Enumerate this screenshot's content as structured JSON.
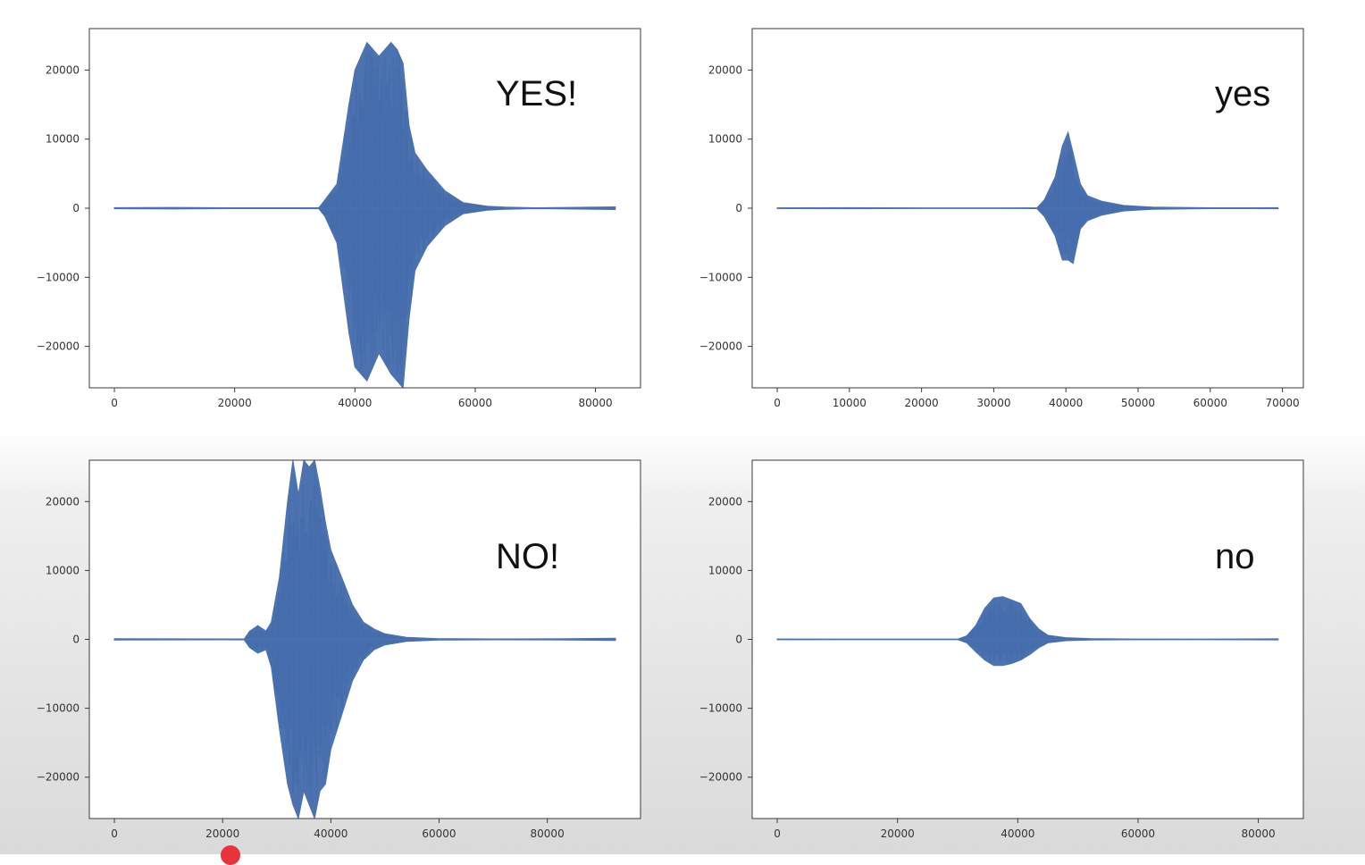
{
  "chart_data": [
    {
      "type": "line",
      "word_label": "YES!",
      "xlim": [
        -4166,
        87487
      ],
      "ylim": [
        -26000,
        26000
      ],
      "xticks": [
        0,
        20000,
        40000,
        60000,
        80000
      ],
      "yticks": [
        20000,
        10000,
        0,
        -10000,
        -20000
      ],
      "color": "#4c72b0",
      "series": [
        {
          "x": [
            0,
            10000,
            20000,
            30000,
            34000,
            35000,
            37000,
            39000,
            40000,
            42000,
            44000,
            46000,
            47000,
            48000,
            49000,
            50000,
            52000,
            55000,
            58000,
            62000,
            65000,
            70000,
            83300
          ],
          "y_max": [
            80,
            120,
            60,
            60,
            80,
            1200,
            3500,
            15000,
            20000,
            24000,
            22000,
            24000,
            23000,
            21000,
            12000,
            8000,
            5500,
            2500,
            800,
            300,
            150,
            60,
            200
          ],
          "y_min": [
            -80,
            -120,
            -60,
            -60,
            -80,
            -1200,
            -5000,
            -18000,
            -23000,
            -25000,
            -21000,
            -24000,
            -25000,
            -26000,
            -16000,
            -9000,
            -5500,
            -2500,
            -800,
            -300,
            -150,
            -60,
            -200
          ]
        }
      ]
    },
    {
      "type": "line",
      "word_label": "yes",
      "xlim": [
        -3470,
        72900
      ],
      "ylim": [
        -26000,
        26000
      ],
      "xticks": [
        0,
        10000,
        20000,
        30000,
        40000,
        50000,
        60000,
        70000
      ],
      "yticks": [
        20000,
        10000,
        0,
        -10000,
        -20000
      ],
      "color": "#4c72b0",
      "series": [
        {
          "x": [
            0,
            10000,
            20000,
            30000,
            36000,
            37000,
            38500,
            39500,
            40300,
            41000,
            42000,
            43000,
            45000,
            48000,
            52000,
            60000,
            69400
          ],
          "y_max": [
            50,
            80,
            40,
            40,
            60,
            1200,
            4500,
            9000,
            11000,
            8000,
            3500,
            1800,
            1000,
            400,
            150,
            60,
            80
          ],
          "y_min": [
            -50,
            -80,
            -40,
            -40,
            -60,
            -1200,
            -4000,
            -7500,
            -7500,
            -8000,
            -3000,
            -1800,
            -1000,
            -400,
            -150,
            -60,
            -80
          ]
        }
      ]
    },
    {
      "type": "line",
      "word_label": "NO!",
      "xlim": [
        -4630,
        97230
      ],
      "ylim": [
        -26000,
        26000
      ],
      "xticks": [
        0,
        20000,
        40000,
        60000,
        80000
      ],
      "yticks": [
        20000,
        10000,
        0,
        -10000,
        -20000
      ],
      "color": "#4c72b0",
      "series": [
        {
          "x": [
            0,
            10000,
            20000,
            24000,
            25000,
            26500,
            28000,
            29000,
            30500,
            32000,
            33000,
            34000,
            35000,
            36000,
            37000,
            38000,
            39000,
            40000,
            42000,
            44000,
            46000,
            48000,
            50000,
            54000,
            60000,
            70000,
            80000,
            92600
          ],
          "y_max": [
            100,
            80,
            60,
            80,
            1200,
            2000,
            1200,
            2500,
            9000,
            20000,
            26000,
            21000,
            26000,
            25000,
            26000,
            22000,
            17000,
            13000,
            9000,
            5000,
            2500,
            1500,
            800,
            300,
            100,
            60,
            80,
            150
          ],
          "y_min": [
            -100,
            -80,
            -60,
            -80,
            -1200,
            -2000,
            -1500,
            -4000,
            -13000,
            -21000,
            -24000,
            -26000,
            -22000,
            -24000,
            -26000,
            -22000,
            -21000,
            -16000,
            -11000,
            -6000,
            -3000,
            -1500,
            -800,
            -300,
            -100,
            -60,
            -80,
            -150
          ]
        }
      ]
    },
    {
      "type": "line",
      "word_label": "no",
      "xlim": [
        -4166,
        87487
      ],
      "ylim": [
        -26000,
        26000
      ],
      "xticks": [
        0,
        20000,
        40000,
        60000,
        80000
      ],
      "yticks": [
        20000,
        10000,
        0,
        -10000,
        -20000
      ],
      "color": "#4c72b0",
      "series": [
        {
          "x": [
            0,
            10000,
            20000,
            30000,
            31500,
            33000,
            34500,
            36000,
            37500,
            39000,
            40500,
            42000,
            43500,
            45000,
            48000,
            52000,
            60000,
            70000,
            83300
          ],
          "y_max": [
            50,
            40,
            40,
            40,
            500,
            2000,
            4500,
            6000,
            6200,
            5700,
            5200,
            3000,
            1500,
            600,
            250,
            120,
            50,
            40,
            80
          ],
          "y_min": [
            -50,
            -40,
            -40,
            -40,
            -500,
            -1800,
            -3000,
            -3800,
            -3800,
            -3500,
            -3000,
            -2200,
            -1200,
            -500,
            -200,
            -100,
            -50,
            -40,
            -80
          ]
        }
      ]
    }
  ]
}
